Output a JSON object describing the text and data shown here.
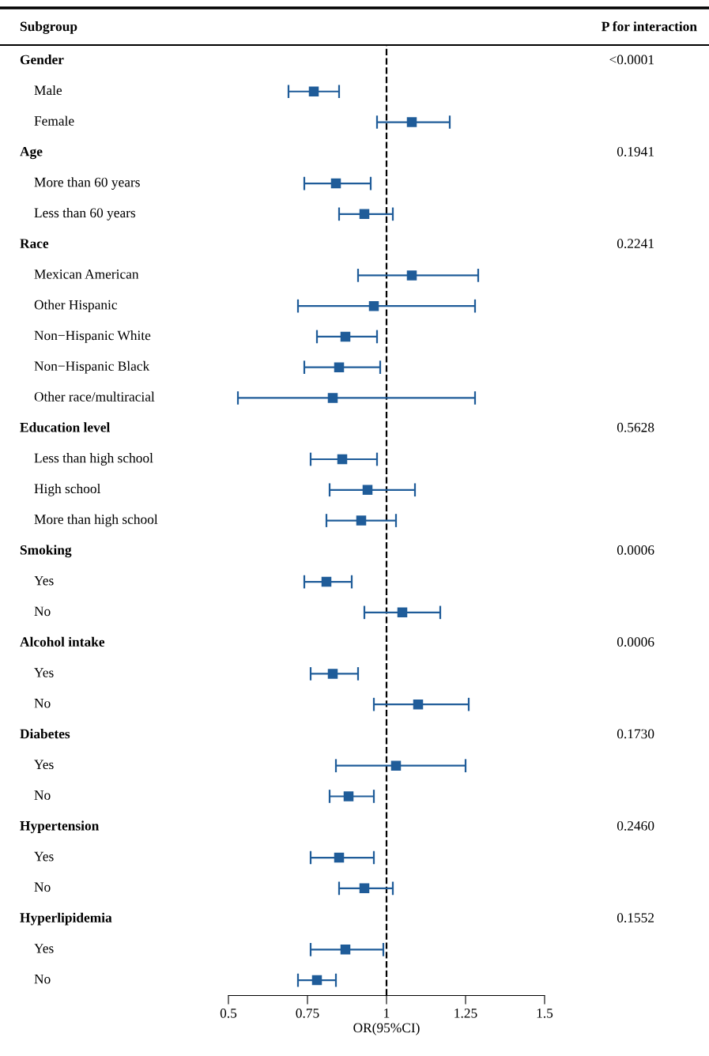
{
  "chart_data": {
    "type": "scatter",
    "orientation": "horizontal",
    "ylabel": "Subgroup",
    "xlabel": "OR(95%CI)",
    "categories": [
      null,
      "Male",
      "Female",
      null,
      "More than 60 years",
      "Less than 60 years",
      null,
      "Mexican American",
      "Other Hispanic",
      "Non−Hispanic White",
      "Non−Hispanic Black",
      "Other race/multiracial",
      null,
      "Less than high school",
      "High school",
      "More than high school",
      null,
      "Yes",
      "No",
      null,
      "Yes",
      "No",
      null,
      "Yes",
      "No",
      null,
      "Yes",
      "No",
      null,
      "Yes",
      "No"
    ],
    "values": [
      null,
      0.77,
      1.08,
      null,
      0.84,
      0.93,
      null,
      1.08,
      0.96,
      0.87,
      0.85,
      0.83,
      null,
      0.86,
      0.94,
      0.92,
      null,
      0.81,
      1.05,
      null,
      0.83,
      1.1,
      null,
      1.03,
      0.88,
      null,
      0.85,
      0.93,
      null,
      0.87,
      0.78
    ],
    "errors": [
      null,
      [
        0.69,
        0.85
      ],
      [
        0.97,
        1.2
      ],
      null,
      [
        0.74,
        0.95
      ],
      [
        0.85,
        1.02
      ],
      null,
      [
        0.91,
        1.29
      ],
      [
        0.72,
        1.28
      ],
      [
        0.78,
        0.97
      ],
      [
        0.74,
        0.98
      ],
      [
        0.53,
        1.28
      ],
      null,
      [
        0.76,
        0.97
      ],
      [
        0.82,
        1.09
      ],
      [
        0.81,
        1.03
      ],
      null,
      [
        0.74,
        0.89
      ],
      [
        0.93,
        1.17
      ],
      null,
      [
        0.76,
        0.91
      ],
      [
        0.96,
        1.26
      ],
      null,
      [
        0.84,
        1.25
      ],
      [
        0.82,
        0.96
      ],
      null,
      [
        0.76,
        0.96
      ],
      [
        0.85,
        1.02
      ],
      null,
      [
        0.76,
        0.99
      ],
      [
        0.72,
        0.84
      ]
    ],
    "color": "#1f5c99",
    "marker": "square",
    "grid": false,
    "legend": false,
    "tick_labels": "x",
    "xlim": [
      0.5,
      1.5
    ],
    "xticks": [
      0.5,
      0.75,
      1,
      1.25,
      1.5
    ],
    "ref_lines": [
      {
        "axis": "x",
        "value": 1,
        "line_style": "dashed",
        "color": "#000000"
      }
    ],
    "annotations": [
      "P for interaction",
      "Gender",
      "<0.0001",
      "Age",
      "0.1941",
      "Race",
      "0.2241",
      "Education level",
      "0.5628",
      "Smoking",
      "0.0006",
      "Alcohol intake",
      "0.0006",
      "Diabetes",
      "0.1730",
      "Hypertension",
      "0.2460",
      "Hyperlipidemia",
      "0.1552"
    ]
  }
}
